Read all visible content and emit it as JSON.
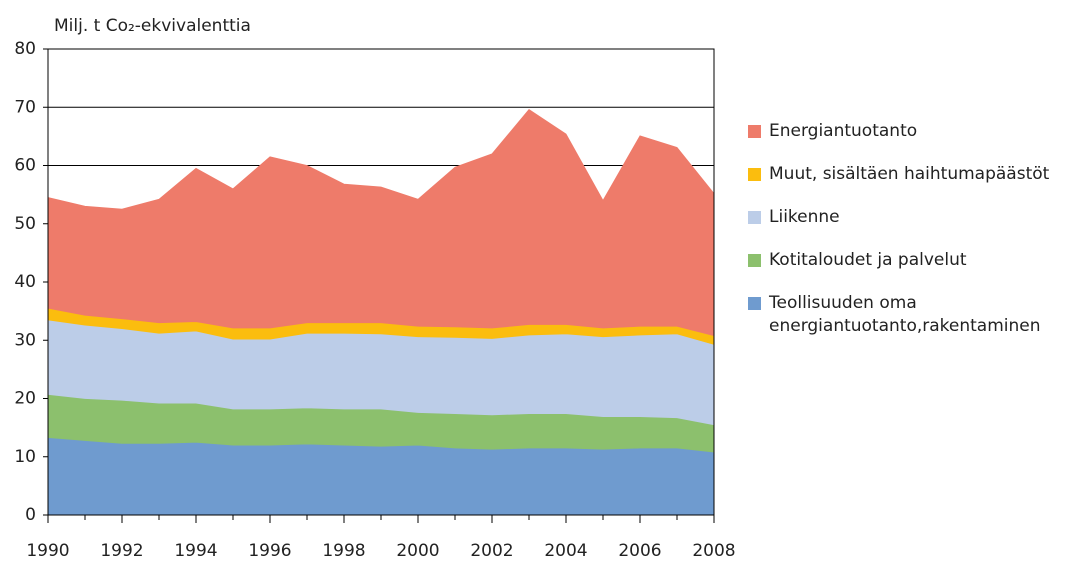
{
  "chart_data": {
    "type": "stacked_area",
    "y_label": "Milj. t Co₂-ekvivalenttia",
    "x": [
      1990,
      1991,
      1992,
      1993,
      1994,
      1995,
      1996,
      1997,
      1998,
      1999,
      2000,
      2001,
      2002,
      2003,
      2004,
      2005,
      2006,
      2007,
      2008
    ],
    "xlim": [
      1990,
      2008
    ],
    "xticks": [
      1990,
      1992,
      1994,
      1996,
      1998,
      2000,
      2002,
      2004,
      2006,
      2008
    ],
    "ylim": [
      0,
      80
    ],
    "yticks": [
      0,
      10,
      20,
      30,
      40,
      50,
      60,
      70,
      80
    ],
    "grid": true,
    "series": [
      {
        "name": "Teollisuuden oma energiantuotanto,rakentaminen",
        "color": "#6f9bcf",
        "values": [
          13.3,
          12.8,
          12.3,
          12.3,
          12.5,
          12.0,
          12.0,
          12.2,
          12.0,
          11.8,
          12.0,
          11.5,
          11.3,
          11.5,
          11.5,
          11.3,
          11.5,
          11.5,
          10.8
        ]
      },
      {
        "name": "Kotitaloudet ja palvelut",
        "color": "#8cc06d",
        "values": [
          7.4,
          7.2,
          7.4,
          6.9,
          6.7,
          6.2,
          6.2,
          6.2,
          6.2,
          6.4,
          5.6,
          5.9,
          5.9,
          5.9,
          5.9,
          5.6,
          5.4,
          5.2,
          4.7
        ]
      },
      {
        "name": "Liikenne",
        "color": "#bccde8",
        "values": [
          12.8,
          12.6,
          12.3,
          12.0,
          12.4,
          12.0,
          12.0,
          12.8,
          13.0,
          12.9,
          13.0,
          13.1,
          13.1,
          13.5,
          13.7,
          13.7,
          14.0,
          14.4,
          13.8
        ]
      },
      {
        "name": "Muut, sisältäen haihtumapäästöt",
        "color": "#fbbd0e",
        "values": [
          2.0,
          1.7,
          1.7,
          1.8,
          1.6,
          1.9,
          1.9,
          1.8,
          1.8,
          1.9,
          1.8,
          1.8,
          1.8,
          1.8,
          1.6,
          1.5,
          1.5,
          1.3,
          1.5
        ]
      },
      {
        "name": "Energiantuotanto",
        "color": "#ee7b6a",
        "values": [
          19.0,
          18.7,
          18.8,
          21.2,
          26.3,
          23.9,
          29.4,
          27.0,
          23.8,
          23.3,
          21.8,
          27.4,
          29.9,
          36.9,
          32.7,
          21.9,
          32.7,
          30.7,
          24.4
        ]
      }
    ]
  }
}
